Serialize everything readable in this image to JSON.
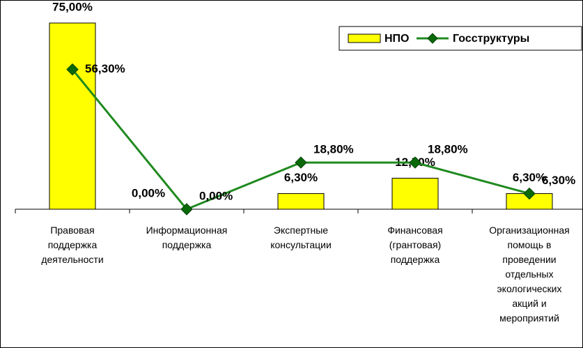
{
  "chart_data": {
    "type": "bar-line",
    "categories": [
      "Правовая поддержка деятельности",
      "Информационная поддержка",
      "Экспертные консультации",
      "Финансовая (грантовая) поддержка",
      "Организационная помощь в проведении отдельных экологических акций и мероприятий"
    ],
    "series": [
      {
        "name": "НПО",
        "type": "bar",
        "color": "#ffff00",
        "values": [
          75,
          0,
          6.3,
          12.5,
          6.3
        ],
        "value_labels": [
          "75,00%",
          "0,00%",
          "6,30%",
          "12,50%",
          "6,30%"
        ]
      },
      {
        "name": "Госструктуры",
        "type": "line",
        "color": "#1f8a1f",
        "values": [
          56.3,
          0,
          18.8,
          18.8,
          6.3
        ],
        "value_labels": [
          "56,30%",
          "0,00%",
          "18,80%",
          "18,80%",
          "6,30%"
        ]
      }
    ],
    "ylim": [
      0,
      75
    ],
    "legend": "top-right"
  }
}
